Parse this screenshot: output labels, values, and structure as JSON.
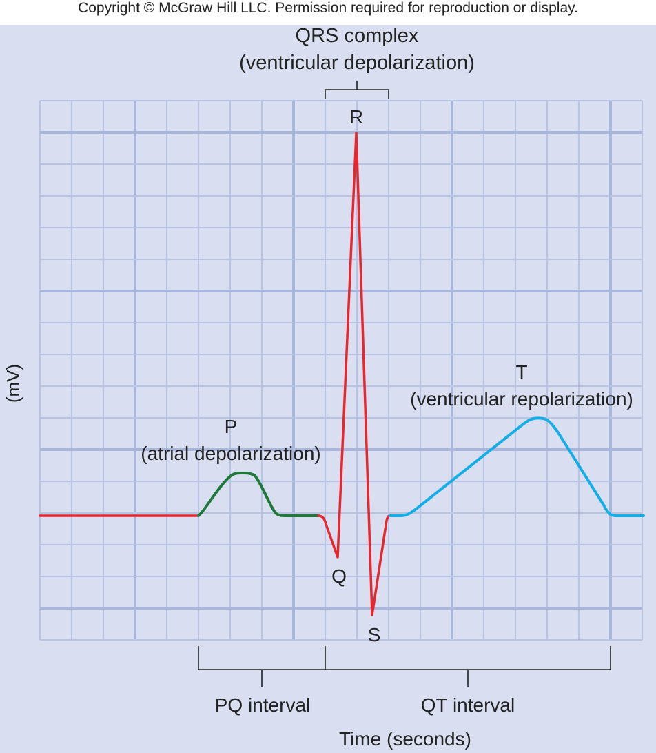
{
  "copyright": "Copyright © McGraw Hill LLC. Permission required for reproduction or display.",
  "y_axis_label": "(mV)",
  "x_axis_label": "Time (seconds)",
  "colors": {
    "panel_background": "#d9dff0",
    "grid_minor": "#b7c3e4",
    "grid_major": "#a9b6dc",
    "baseline_and_qrs": "#e8262e",
    "p_wave": "#1f7a3a",
    "t_wave": "#14aee6",
    "annotation": "#222222"
  },
  "waves": {
    "p": {
      "letter": "P",
      "description": "(atrial depolarization)"
    },
    "qrs": {
      "title": "QRS complex",
      "description": "(ventricular depolarization)",
      "q": "Q",
      "r": "R",
      "s": "S"
    },
    "t": {
      "letter": "T",
      "description": "(ventricular repolarization)"
    }
  },
  "intervals": {
    "pq": "PQ interval",
    "qt": "QT interval"
  }
}
